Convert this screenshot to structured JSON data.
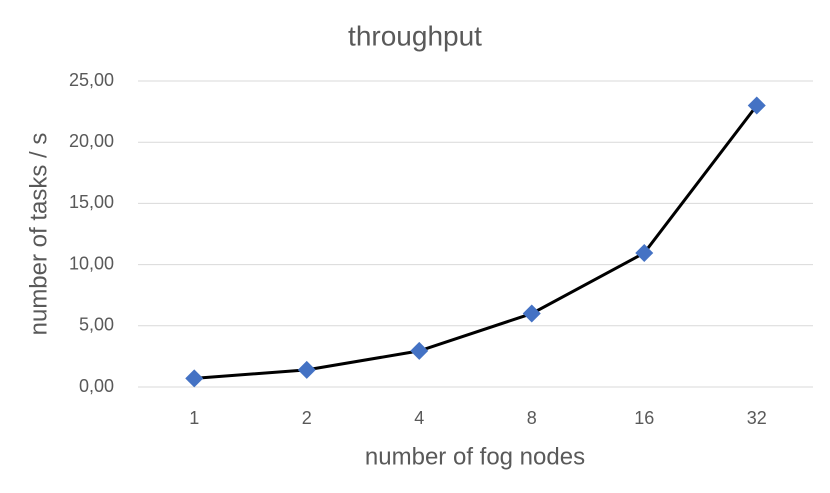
{
  "chart_data": {
    "type": "line",
    "title": "throughput",
    "x_label": "number of fog nodes",
    "y_label": "number of tasks / s",
    "categories": [
      "1",
      "2",
      "4",
      "8",
      "16",
      "32"
    ],
    "values": [
      0.7,
      1.4,
      2.95,
      6.0,
      10.95,
      23.0
    ],
    "color": "#4472c4",
    "line_color": "#000000",
    "ylim": [
      0,
      25
    ],
    "yticks": [
      {
        "value": 0,
        "label": "0,00"
      },
      {
        "value": 5,
        "label": "5,00"
      },
      {
        "value": 10,
        "label": "10,00"
      },
      {
        "value": 15,
        "label": "15,00"
      },
      {
        "value": 20,
        "label": "20,00"
      },
      {
        "value": 25,
        "label": "25,00"
      }
    ],
    "grid": true
  }
}
